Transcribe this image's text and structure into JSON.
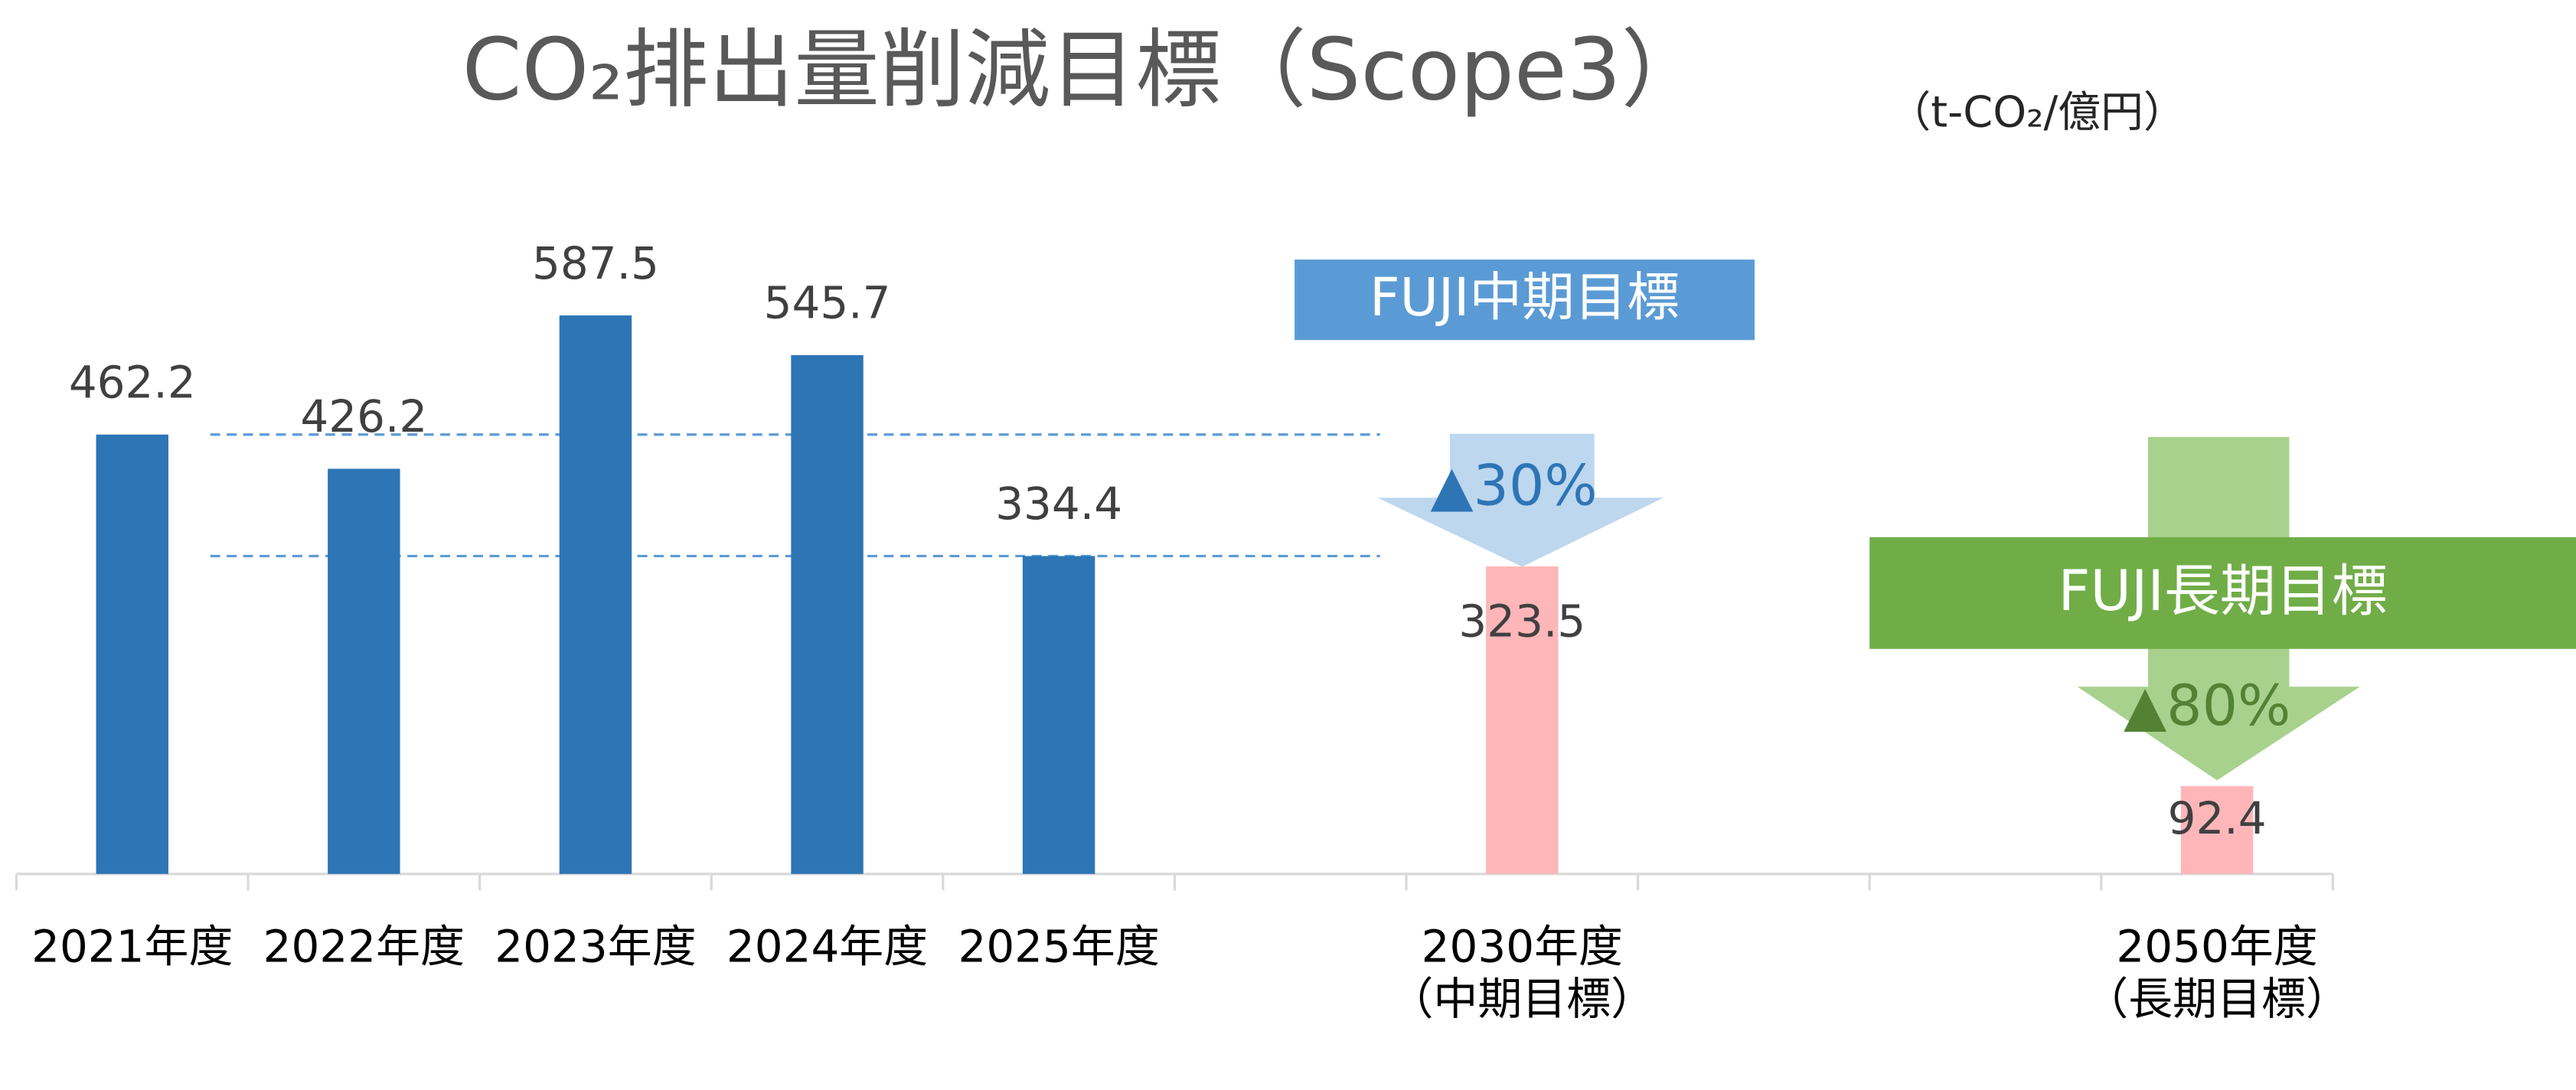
{
  "chart_data": {
    "type": "bar",
    "title": "CO₂排出量削減目標（Scope3）",
    "unit_label": "（t-CO₂/億円）",
    "categories": [
      "2021年度",
      "2022年度",
      "2023年度",
      "2024年度",
      "2025年度",
      null,
      "2030年度",
      null,
      null,
      "2050年度"
    ],
    "category_notes": [
      null,
      null,
      null,
      null,
      null,
      null,
      "（中期目標）",
      null,
      null,
      "（長期目標）"
    ],
    "values": [
      462.2,
      426.2,
      587.5,
      545.7,
      334.4,
      null,
      323.5,
      null,
      null,
      92.4
    ],
    "bar_colors": [
      "#2e75b6",
      "#2e75b6",
      "#2e75b6",
      "#2e75b6",
      "#2e75b6",
      null,
      "#ffb6b9",
      null,
      null,
      "#ffb6b9"
    ],
    "annotations": {
      "mid_term": {
        "banner": "FUJI中期目標",
        "reduction": "▲30%",
        "banner_color": "#5b9bd5",
        "arrow_color": "#bdd7ee",
        "text_color": "#2e75b6"
      },
      "long_term": {
        "banner": "FUJI長期目標",
        "reduction": "▲80%",
        "banner_color": "#70ad47",
        "arrow_color": "#a9d18e",
        "text_color": "#548235"
      }
    },
    "reference_lines": [
      0,
      4
    ]
  }
}
